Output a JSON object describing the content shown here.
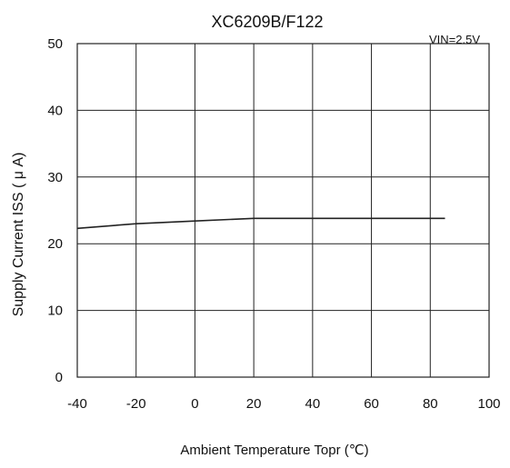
{
  "chart_data": {
    "type": "line",
    "title": "XC6209B/F122",
    "annotation": "VIN=2.5V",
    "xlabel": "Ambient Temperature Topr (℃)",
    "ylabel": "Supply Current ISS ( μ A)",
    "xlim": [
      -40,
      100
    ],
    "ylim": [
      0,
      50
    ],
    "xticks": [
      "-40",
      "-20",
      "0",
      "20",
      "40",
      "60",
      "80",
      "100"
    ],
    "yticks": [
      "0",
      "10",
      "20",
      "30",
      "40",
      "50"
    ],
    "grid": true,
    "series": [
      {
        "x": [
          -40,
          -20,
          0,
          20,
          40,
          60,
          85
        ],
        "y": [
          22.3,
          23.0,
          23.4,
          23.8,
          23.8,
          23.8,
          23.8
        ]
      }
    ],
    "colors": {
      "line": "#222222",
      "grid": "#222222",
      "text": "#111111"
    }
  }
}
